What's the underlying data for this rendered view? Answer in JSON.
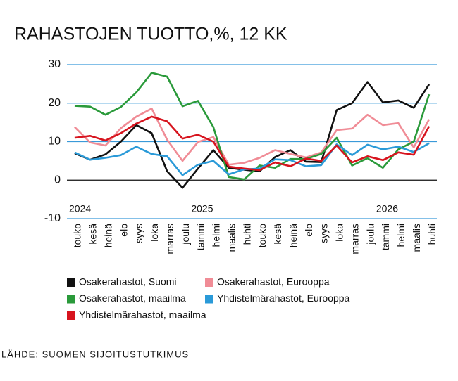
{
  "chart_data": {
    "type": "line",
    "title": "RAHASTOJEN TUOTTO,%, 12 KK",
    "categories": [
      "touko",
      "kesä",
      "heinä",
      "elo",
      "syys",
      "loka",
      "marras",
      "joulu",
      "tammi",
      "helmi",
      "maalis",
      "huhti",
      "touko",
      "kesä",
      "heinä",
      "elo",
      "syys",
      "loka",
      "marras",
      "joulu",
      "tammi",
      "helmi",
      "maalis",
      "huhti"
    ],
    "year_labels": [
      "2024",
      "2025",
      "2026"
    ],
    "series": [
      {
        "name": "Osakerahastot, Suomi",
        "color": "#111111",
        "values": [
          7,
          5.3,
          6.7,
          10,
          14.3,
          12.2,
          2.3,
          -2,
          3,
          7.8,
          3.2,
          2.7,
          2.3,
          6,
          7.8,
          4.8,
          4.7,
          18.2,
          20,
          25.5,
          20.2,
          20.7,
          18.8,
          24.9
        ]
      },
      {
        "name": "Osakerahastot, Eurooppa",
        "color": "#f08c96",
        "values": [
          13.8,
          9.8,
          9,
          13.5,
          16.5,
          18.6,
          10.5,
          5,
          9.9,
          11.2,
          4,
          4.5,
          5.8,
          7.8,
          6.8,
          5.9,
          7.2,
          13,
          13.4,
          17,
          14.3,
          14.8,
          8.5,
          15.8
        ]
      },
      {
        "name": "Osakerahastot, maailma",
        "color": "#2a9a3a",
        "values": [
          19.3,
          19.1,
          17,
          19,
          22.8,
          27.9,
          26.9,
          19.2,
          20.6,
          13.8,
          0.8,
          0.2,
          3.8,
          3.2,
          5.5,
          5.5,
          6.8,
          11,
          3.8,
          5.7,
          3.2,
          8,
          10,
          22.3
        ]
      },
      {
        "name": "Yhdistelmärahastot, Eurooppa",
        "color": "#2a9ad8",
        "values": [
          7.2,
          5.3,
          5.8,
          6.5,
          8.7,
          6.8,
          6.2,
          1.3,
          4,
          5,
          1.5,
          2.8,
          3,
          5.4,
          5.2,
          3.6,
          3.9,
          9.3,
          6.5,
          9.2,
          8,
          8.7,
          7.3,
          9.6
        ]
      },
      {
        "name": "Yhdistelmärahastot, maailma",
        "color": "#d7141e",
        "values": [
          11,
          11.5,
          10.3,
          12.2,
          14.7,
          16.5,
          15.3,
          10.8,
          11.8,
          10,
          3.5,
          3,
          2.6,
          4.6,
          3.6,
          5.6,
          5,
          9,
          4.6,
          6.2,
          5.2,
          7.2,
          6.6,
          14
        ]
      }
    ],
    "ylim": [
      -10,
      30
    ],
    "yticks": [
      -10,
      0,
      10,
      20,
      30
    ],
    "grid": true,
    "grid_color": "#3a9ad9",
    "source": "LÄHDE: SUOMEN SIJOITUSTUTKIMUS"
  }
}
